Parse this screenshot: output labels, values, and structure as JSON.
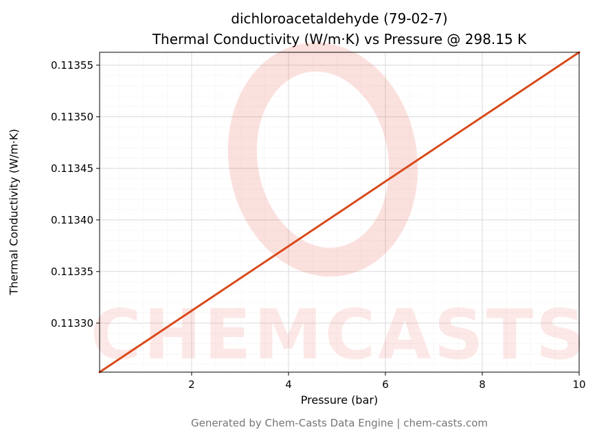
{
  "title_line1": "dichloroacetaldehyde (79-02-7)",
  "title_line2": "Thermal Conductivity (W/m·K) vs Pressure @ 298.15 K",
  "footer": "Generated by Chem-Casts Data Engine | chem-casts.com",
  "watermark": {
    "text": "CHEMCASTS",
    "color": "#e74c3c",
    "text_opacity": 0.13,
    "ring_opacity": 0.17
  },
  "chart_data": {
    "type": "line",
    "title": "dichloroacetaldehyde (79-02-7) Thermal Conductivity (W/m·K) vs Pressure @ 298.15 K",
    "xlabel": "Pressure (bar)",
    "ylabel": "Thermal Conductivity (W/m·K)",
    "xlim": [
      0.1,
      10.0
    ],
    "ylim": [
      0.1132525,
      0.1135625
    ],
    "x_ticks": [
      2,
      4,
      6,
      8,
      10
    ],
    "x_tick_labels": [
      "2",
      "4",
      "6",
      "8",
      "10"
    ],
    "y_ticks": [
      0.1133,
      0.11335,
      0.1134,
      0.11345,
      0.1135,
      0.11355
    ],
    "y_tick_labels": [
      "0.11330",
      "0.11335",
      "0.11340",
      "0.11345",
      "0.11350",
      "0.11355"
    ],
    "x_minor_step": 0.5,
    "y_minor_step": 1e-05,
    "grid": true,
    "legend": "none",
    "line_color": "#d9491b",
    "line_width": 3,
    "temperature_K": "298.15",
    "series": [
      {
        "name": "Thermal Conductivity",
        "x": [
          0.1,
          1,
          2,
          3,
          4,
          5,
          6,
          7,
          8,
          9,
          10
        ],
        "y": [
          0.1132525,
          0.1132807,
          0.113312,
          0.1133433,
          0.1133746,
          0.1134059,
          0.1134373,
          0.1134686,
          0.1134999,
          0.1135312,
          0.1135625
        ]
      }
    ]
  }
}
